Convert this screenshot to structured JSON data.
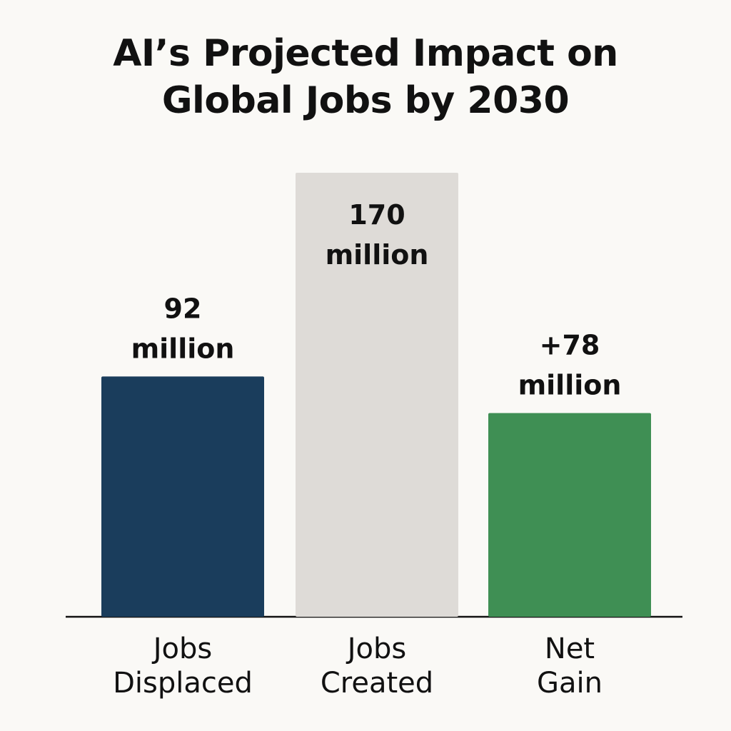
{
  "chart_data": {
    "type": "bar",
    "title": [
      "AI’s Projected Impact on",
      "Global Jobs by 2030"
    ],
    "categories": [
      [
        "Jobs",
        "Displaced"
      ],
      [
        "Jobs",
        "Created"
      ],
      [
        "Net",
        "Gain"
      ]
    ],
    "values": [
      92,
      170,
      78
    ],
    "value_labels": [
      [
        "92",
        "million"
      ],
      [
        "170",
        "million"
      ],
      [
        "+78",
        "million"
      ]
    ],
    "unit": "million",
    "colors": [
      "#1a3d5c",
      "#dedbd7",
      "#3f8f54"
    ],
    "axis_color": "#111111",
    "ylim": [
      0,
      170
    ],
    "grid": false,
    "legend": false
  }
}
